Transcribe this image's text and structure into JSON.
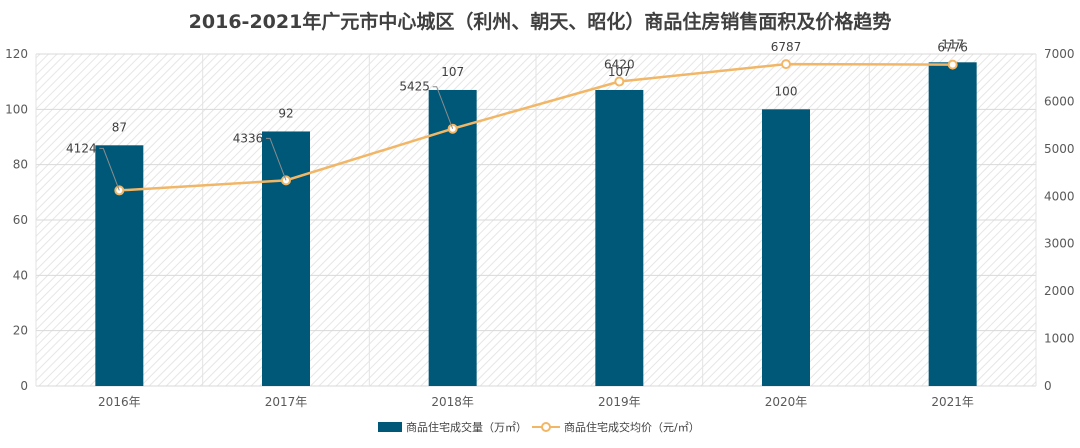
{
  "chart_data": {
    "type": "bar",
    "title": "2016-2021年广元市中心城区（利州、朝天、昭化）商品住房销售面积及价格趋势",
    "categories": [
      "2016年",
      "2017年",
      "2018年",
      "2019年",
      "2020年",
      "2021年"
    ],
    "series": [
      {
        "name": "商品住宅成交量（万㎡）",
        "type": "bar",
        "axis": "left",
        "color": "#005878",
        "values": [
          87,
          92,
          107,
          107,
          100,
          117
        ],
        "labels": [
          "87",
          "92",
          "107",
          "107",
          "100",
          "117"
        ]
      },
      {
        "name": "商品住宅成交均价（元/㎡）",
        "type": "line",
        "axis": "right",
        "color": "#F2B766",
        "values": [
          4124,
          4336,
          5425,
          6420,
          6787,
          6776
        ],
        "labels": [
          "4124",
          "4336",
          "5425",
          "6420",
          "6787",
          "6776"
        ]
      }
    ],
    "y_left": {
      "min": 0,
      "max": 120,
      "ticks": [
        "0",
        "20",
        "40",
        "60",
        "80",
        "100",
        "120"
      ]
    },
    "y_right": {
      "min": 0,
      "max": 7000,
      "ticks": [
        "0",
        "1000",
        "2000",
        "3000",
        "4000",
        "5000",
        "6000",
        "7000"
      ]
    },
    "grid": true,
    "legend_position": "bottom"
  }
}
